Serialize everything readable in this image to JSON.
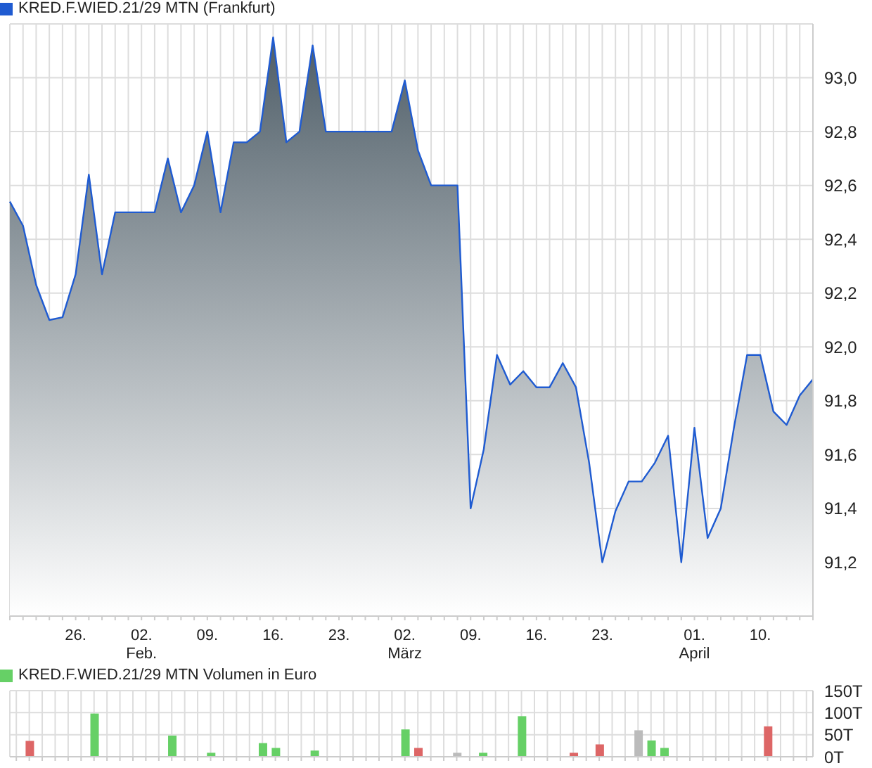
{
  "chart_data": [
    {
      "type": "area",
      "categories": [
        null,
        null,
        null,
        null,
        null,
        "26.",
        null,
        null,
        null,
        null,
        "02.\nFeb.",
        null,
        null,
        null,
        null,
        "09.",
        null,
        null,
        null,
        null,
        "16.",
        null,
        null,
        null,
        null,
        "23.",
        null,
        null,
        null,
        null,
        "02.\nMärz",
        null,
        null,
        null,
        null,
        "09.",
        null,
        null,
        null,
        null,
        "16.",
        null,
        null,
        null,
        null,
        "23.",
        null,
        null,
        null,
        null,
        null,
        null,
        "01.\nApril",
        null,
        null,
        null,
        null,
        "10.",
        null,
        null,
        null,
        null
      ],
      "series": [
        {
          "name": "KRED.F.WIED.21/29 MTN (Frankfurt)",
          "color": "#1f5bd1",
          "values": [
            92.54,
            92.45,
            92.23,
            92.1,
            92.11,
            92.27,
            92.64,
            92.27,
            92.5,
            92.5,
            92.5,
            92.5,
            92.7,
            92.5,
            92.6,
            92.8,
            92.5,
            92.76,
            92.76,
            92.8,
            93.15,
            92.76,
            92.8,
            93.12,
            92.8,
            92.8,
            92.8,
            92.8,
            92.8,
            92.8,
            92.99,
            92.73,
            92.6,
            92.6,
            92.6,
            91.4,
            91.62,
            91.97,
            91.86,
            91.91,
            91.85,
            91.85,
            91.94,
            91.85,
            91.57,
            91.2,
            91.39,
            91.5,
            91.5,
            91.57,
            91.67,
            91.2,
            91.7,
            91.29,
            91.4,
            91.7,
            91.97,
            91.97,
            91.76,
            91.71,
            91.82,
            91.88
          ]
        }
      ],
      "ylim": [
        91.0,
        93.2
      ],
      "yticks": [
        {
          "value": 91.2,
          "label": "91,2"
        },
        {
          "value": 91.4,
          "label": "91,4"
        },
        {
          "value": 91.6,
          "label": "91,6"
        },
        {
          "value": 91.8,
          "label": "91,8"
        },
        {
          "value": 92.0,
          "label": "92,0"
        },
        {
          "value": 92.2,
          "label": "92,2"
        },
        {
          "value": 92.4,
          "label": "92,4"
        },
        {
          "value": 92.6,
          "label": "92,6"
        },
        {
          "value": 92.8,
          "label": "92,8"
        },
        {
          "value": 93.0,
          "label": "93,0"
        }
      ],
      "grid": true,
      "legend": "top left"
    },
    {
      "type": "bar",
      "categories": [
        null,
        null,
        null,
        null,
        null,
        null,
        null,
        null,
        null,
        null,
        null,
        null,
        null,
        null,
        null,
        null,
        null,
        null,
        null,
        null,
        null,
        null,
        null,
        null,
        null,
        null,
        null,
        null,
        null,
        null,
        null,
        null,
        null,
        null,
        null,
        null,
        null,
        null,
        null,
        null,
        null,
        null,
        null,
        null,
        null,
        null,
        null,
        null,
        null,
        null,
        null,
        null,
        null,
        null,
        null,
        null,
        null,
        null,
        null,
        null,
        null,
        null
      ],
      "series": [
        {
          "name": "KRED.F.WIED.21/29 MTN Volumen in Euro",
          "color": "#66d066",
          "values": [
            null,
            36,
            null,
            null,
            null,
            null,
            98,
            null,
            null,
            null,
            null,
            null,
            48,
            null,
            null,
            9,
            null,
            null,
            null,
            31,
            20,
            null,
            null,
            14,
            null,
            null,
            null,
            null,
            null,
            null,
            62,
            20,
            null,
            null,
            9,
            null,
            9,
            null,
            null,
            92,
            null,
            null,
            null,
            9,
            null,
            28,
            null,
            null,
            60,
            37,
            20,
            null,
            null,
            null,
            null,
            null,
            null,
            null,
            69,
            null,
            null,
            null
          ],
          "colors": [
            null,
            "#dd6666",
            null,
            null,
            null,
            null,
            "#66d066",
            null,
            null,
            null,
            null,
            null,
            "#66d066",
            null,
            null,
            "#66d066",
            null,
            null,
            null,
            "#66d066",
            "#66d066",
            null,
            null,
            "#66d066",
            null,
            null,
            null,
            null,
            null,
            null,
            "#66d066",
            "#dd6666",
            null,
            null,
            "#bbbbbb",
            null,
            "#66d066",
            null,
            null,
            "#66d066",
            null,
            null,
            null,
            "#dd6666",
            null,
            "#dd6666",
            null,
            null,
            "#bbbbbb",
            "#66d066",
            "#66d066",
            null,
            null,
            null,
            null,
            null,
            null,
            null,
            "#dd6666",
            null,
            null,
            null
          ]
        }
      ],
      "ylim": [
        0,
        150
      ],
      "yticks": [
        {
          "value": 0,
          "label": "0T"
        },
        {
          "value": 50,
          "label": "50T"
        },
        {
          "value": 100,
          "label": "100T"
        },
        {
          "value": 150,
          "label": "150T"
        }
      ],
      "grid": true,
      "legend": "top left"
    }
  ]
}
